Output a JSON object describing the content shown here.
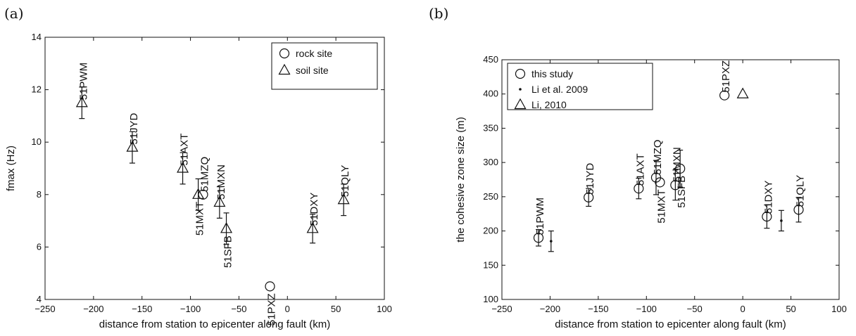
{
  "chart_data": [
    {
      "panel_label": "(a)",
      "type": "scatter",
      "xlabel": "distance from station to epicenter along fault (km)",
      "ylabel": "fmax (Hz)",
      "xlim": [
        -250,
        100
      ],
      "ylim": [
        4,
        14
      ],
      "xticks": [
        -250,
        -200,
        -150,
        -100,
        -50,
        0,
        50,
        100
      ],
      "yticks": [
        4,
        6,
        8,
        10,
        12,
        14
      ],
      "grid": false,
      "legend": {
        "placement": "top-right",
        "entries": [
          {
            "marker": "circle",
            "label": "rock site"
          },
          {
            "marker": "triangle",
            "label": "soil site"
          }
        ]
      },
      "series": [
        {
          "name": "soil site",
          "marker": "triangle",
          "points": [
            {
              "label": "51PWM",
              "x": -212,
              "y": 11.5,
              "err": 0.6,
              "label_pos": "above"
            },
            {
              "label": "51JYD",
              "x": -160,
              "y": 9.8,
              "err": 0.6,
              "label_pos": "above"
            },
            {
              "label": "51AXT",
              "x": -108,
              "y": 9.0,
              "err": 0.6,
              "label_pos": "above"
            },
            {
              "label": "51MXT",
              "x": -92,
              "y": 8.0,
              "err": 0.6,
              "label_pos": "below"
            },
            {
              "label": "51MXN",
              "x": -70,
              "y": 7.7,
              "err": 0.6,
              "label_pos": "above"
            },
            {
              "label": "51SFB",
              "x": -63,
              "y": 6.7,
              "err": 0.6,
              "label_pos": "below"
            },
            {
              "label": "51DXY",
              "x": 26,
              "y": 6.7,
              "err": 0.55,
              "label_pos": "above"
            },
            {
              "label": "51QLY",
              "x": 58,
              "y": 7.8,
              "err": 0.6,
              "label_pos": "above"
            }
          ]
        },
        {
          "name": "rock site",
          "marker": "circle",
          "points": [
            {
              "label": "51MZQ",
              "x": -87,
              "y": 8.0,
              "err": 0,
              "label_pos": "above"
            },
            {
              "label": "51PXZ",
              "x": -18,
              "y": 4.5,
              "err": 0,
              "label_pos": "below"
            }
          ]
        }
      ]
    },
    {
      "panel_label": "(b)",
      "type": "scatter",
      "xlabel": "distance from station to epicenter along fault (km)",
      "ylabel": "the cohesive zone size (m)",
      "xlim": [
        -250,
        100
      ],
      "ylim": [
        100,
        450
      ],
      "xticks": [
        -250,
        -200,
        -150,
        -100,
        -50,
        0,
        50,
        100
      ],
      "yticks": [
        100,
        150,
        200,
        250,
        300,
        350,
        400,
        450
      ],
      "grid": false,
      "legend": {
        "placement": "top-left",
        "entries": [
          {
            "marker": "circle",
            "label": "this study"
          },
          {
            "marker": "dot",
            "label": "Li et al. 2009"
          },
          {
            "marker": "triangle",
            "label": "Li, 2010"
          }
        ]
      },
      "series": [
        {
          "name": "this study",
          "marker": "circle",
          "points": [
            {
              "label": "51PWM",
              "x": -212,
              "y": 190,
              "err": 12,
              "label_pos": "above"
            },
            {
              "label": "51JYD",
              "x": -160,
              "y": 249,
              "err": 13,
              "label_pos": "above"
            },
            {
              "label": "51AXT",
              "x": -108,
              "y": 262,
              "err": 15,
              "label_pos": "above"
            },
            {
              "label": "51MZQ",
              "x": -90,
              "y": 278,
              "err": 25,
              "label_pos": "above"
            },
            {
              "label": "51MXT",
              "x": -86,
              "y": 271,
              "err": 0,
              "label_pos": "below"
            },
            {
              "label": "51MXN",
              "x": -70,
              "y": 267,
              "err": 22,
              "label_pos": "above"
            },
            {
              "label": "51SFB",
              "x": -65,
              "y": 291,
              "err": 27,
              "label_pos": "below"
            },
            {
              "label": "51PXZ",
              "x": -19,
              "y": 398,
              "err": 0,
              "label_pos": "above"
            },
            {
              "label": "51DXY",
              "x": 25,
              "y": 221,
              "err": 17,
              "label_pos": "above"
            },
            {
              "label": "51QLY",
              "x": 58,
              "y": 231,
              "err": 18,
              "label_pos": "above"
            }
          ]
        },
        {
          "name": "Li et al. 2009",
          "marker": "dot",
          "points": [
            {
              "x": -199,
              "y": 185,
              "err": 15
            },
            {
              "x": 40,
              "y": 215,
              "err": 15
            }
          ]
        },
        {
          "name": "Li, 2010",
          "marker": "triangle",
          "points": [
            {
              "x": 0,
              "y": 400,
              "err": 0
            }
          ]
        }
      ]
    }
  ]
}
